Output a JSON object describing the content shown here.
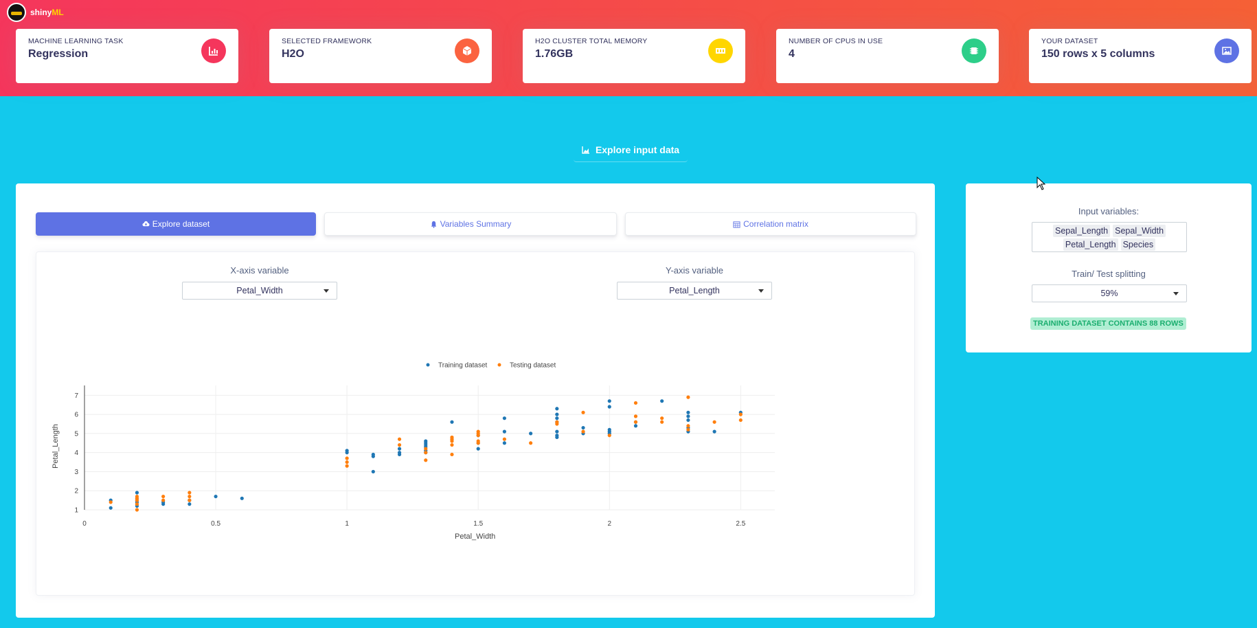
{
  "app": {
    "logo_text_main": "shiny",
    "logo_text_accent": "ML"
  },
  "stats": [
    {
      "label": "MACHINE LEARNING TASK",
      "value": "Regression",
      "icon": "chart-bar-icon",
      "color": "#f5365c"
    },
    {
      "label": "SELECTED FRAMEWORK",
      "value": "H2O",
      "icon": "cube-icon",
      "color": "#fb6340"
    },
    {
      "label": "H2O CLUSTER TOTAL MEMORY",
      "value": "1.76GB",
      "icon": "memory-icon",
      "color": "#ffd600"
    },
    {
      "label": "NUMBER OF CPUS IN USE",
      "value": "4",
      "icon": "cpu-icon",
      "color": "#2dce89"
    },
    {
      "label": "YOUR DATASET",
      "value": "150 rows x 5 columns",
      "icon": "image-icon",
      "color": "#5e72e4"
    }
  ],
  "section_title": "Explore input data",
  "tabs": [
    {
      "label": "Explore dataset",
      "icon": "cloud-upload-icon",
      "active": true
    },
    {
      "label": "Variables Summary",
      "icon": "bell-icon",
      "active": false
    },
    {
      "label": "Correlation matrix",
      "icon": "calendar-grid-icon",
      "active": false
    }
  ],
  "x_select": {
    "label": "X-axis variable",
    "value": "Petal_Width"
  },
  "y_select": {
    "label": "Y-axis variable",
    "value": "Petal_Length"
  },
  "side": {
    "input_label": "Input variables:",
    "input_chips": [
      "Sepal_Length",
      "Sepal_Width",
      "Petal_Length",
      "Species"
    ],
    "split_label": "Train/ Test splitting",
    "split_value": "59%",
    "badge": "TRAINING DATASET CONTAINS 88 ROWS"
  },
  "chart_data": {
    "type": "scatter",
    "xlabel": "Petal_Width",
    "ylabel": "Petal_Length",
    "xlim": [
      0,
      2.63
    ],
    "ylim": [
      1,
      7.3
    ],
    "xticks": [
      0,
      0.5,
      1,
      1.5,
      2,
      2.5
    ],
    "yticks": [
      1,
      2,
      3,
      4,
      5,
      6,
      7
    ],
    "legend_position": "top-center",
    "series": [
      {
        "name": "Training dataset",
        "color": "#1f77b4",
        "points": [
          [
            0.1,
            1.1
          ],
          [
            0.1,
            1.5
          ],
          [
            0.2,
            1.2
          ],
          [
            0.2,
            1.3
          ],
          [
            0.2,
            1.4
          ],
          [
            0.2,
            1.5
          ],
          [
            0.2,
            1.6
          ],
          [
            0.2,
            1.9
          ],
          [
            0.3,
            1.3
          ],
          [
            0.3,
            1.4
          ],
          [
            0.4,
            1.3
          ],
          [
            0.4,
            1.5
          ],
          [
            0.5,
            1.7
          ],
          [
            0.6,
            1.6
          ],
          [
            1.0,
            4.0
          ],
          [
            1.0,
            4.1
          ],
          [
            1.1,
            3.0
          ],
          [
            1.1,
            3.8
          ],
          [
            1.1,
            3.9
          ],
          [
            1.2,
            3.9
          ],
          [
            1.2,
            4.0
          ],
          [
            1.2,
            4.2
          ],
          [
            1.3,
            4.0
          ],
          [
            1.3,
            4.1
          ],
          [
            1.3,
            4.3
          ],
          [
            1.3,
            4.4
          ],
          [
            1.3,
            4.5
          ],
          [
            1.3,
            4.6
          ],
          [
            1.4,
            4.7
          ],
          [
            1.4,
            5.6
          ],
          [
            1.5,
            4.2
          ],
          [
            1.5,
            4.5
          ],
          [
            1.5,
            4.9
          ],
          [
            1.6,
            4.5
          ],
          [
            1.6,
            5.1
          ],
          [
            1.6,
            5.8
          ],
          [
            1.7,
            5.0
          ],
          [
            1.8,
            4.8
          ],
          [
            1.8,
            4.9
          ],
          [
            1.8,
            5.1
          ],
          [
            1.8,
            5.6
          ],
          [
            1.8,
            5.8
          ],
          [
            1.8,
            6.0
          ],
          [
            1.8,
            6.3
          ],
          [
            1.9,
            5.0
          ],
          [
            1.9,
            5.3
          ],
          [
            2.0,
            5.0
          ],
          [
            2.0,
            5.1
          ],
          [
            2.0,
            5.2
          ],
          [
            2.0,
            6.4
          ],
          [
            2.0,
            6.7
          ],
          [
            2.1,
            5.4
          ],
          [
            2.1,
            5.6
          ],
          [
            2.2,
            6.7
          ],
          [
            2.3,
            5.1
          ],
          [
            2.3,
            5.3
          ],
          [
            2.3,
            5.7
          ],
          [
            2.3,
            5.9
          ],
          [
            2.3,
            6.1
          ],
          [
            2.4,
            5.1
          ],
          [
            2.5,
            6.1
          ]
        ]
      },
      {
        "name": "Testing dataset",
        "color": "#ff7f0e",
        "points": [
          [
            0.1,
            1.4
          ],
          [
            0.2,
            1.0
          ],
          [
            0.2,
            1.3
          ],
          [
            0.2,
            1.5
          ],
          [
            0.2,
            1.6
          ],
          [
            0.2,
            1.7
          ],
          [
            0.3,
            1.5
          ],
          [
            0.3,
            1.7
          ],
          [
            0.4,
            1.5
          ],
          [
            0.4,
            1.7
          ],
          [
            0.4,
            1.9
          ],
          [
            1.0,
            3.3
          ],
          [
            1.0,
            3.5
          ],
          [
            1.0,
            3.7
          ],
          [
            1.2,
            4.4
          ],
          [
            1.2,
            4.7
          ],
          [
            1.3,
            3.6
          ],
          [
            1.3,
            4.0
          ],
          [
            1.3,
            4.2
          ],
          [
            1.4,
            3.9
          ],
          [
            1.4,
            4.4
          ],
          [
            1.4,
            4.6
          ],
          [
            1.4,
            4.7
          ],
          [
            1.4,
            4.8
          ],
          [
            1.5,
            4.5
          ],
          [
            1.5,
            4.6
          ],
          [
            1.5,
            4.9
          ],
          [
            1.5,
            5.0
          ],
          [
            1.5,
            5.1
          ],
          [
            1.6,
            4.7
          ],
          [
            1.7,
            4.5
          ],
          [
            1.8,
            5.5
          ],
          [
            1.8,
            5.6
          ],
          [
            1.9,
            5.1
          ],
          [
            1.9,
            6.1
          ],
          [
            2.0,
            4.9
          ],
          [
            2.1,
            5.6
          ],
          [
            2.1,
            5.9
          ],
          [
            2.1,
            6.6
          ],
          [
            2.2,
            5.6
          ],
          [
            2.2,
            5.8
          ],
          [
            2.3,
            5.2
          ],
          [
            2.3,
            5.4
          ],
          [
            2.3,
            6.9
          ],
          [
            2.4,
            5.6
          ],
          [
            2.5,
            5.7
          ],
          [
            2.5,
            6.0
          ]
        ]
      }
    ]
  }
}
